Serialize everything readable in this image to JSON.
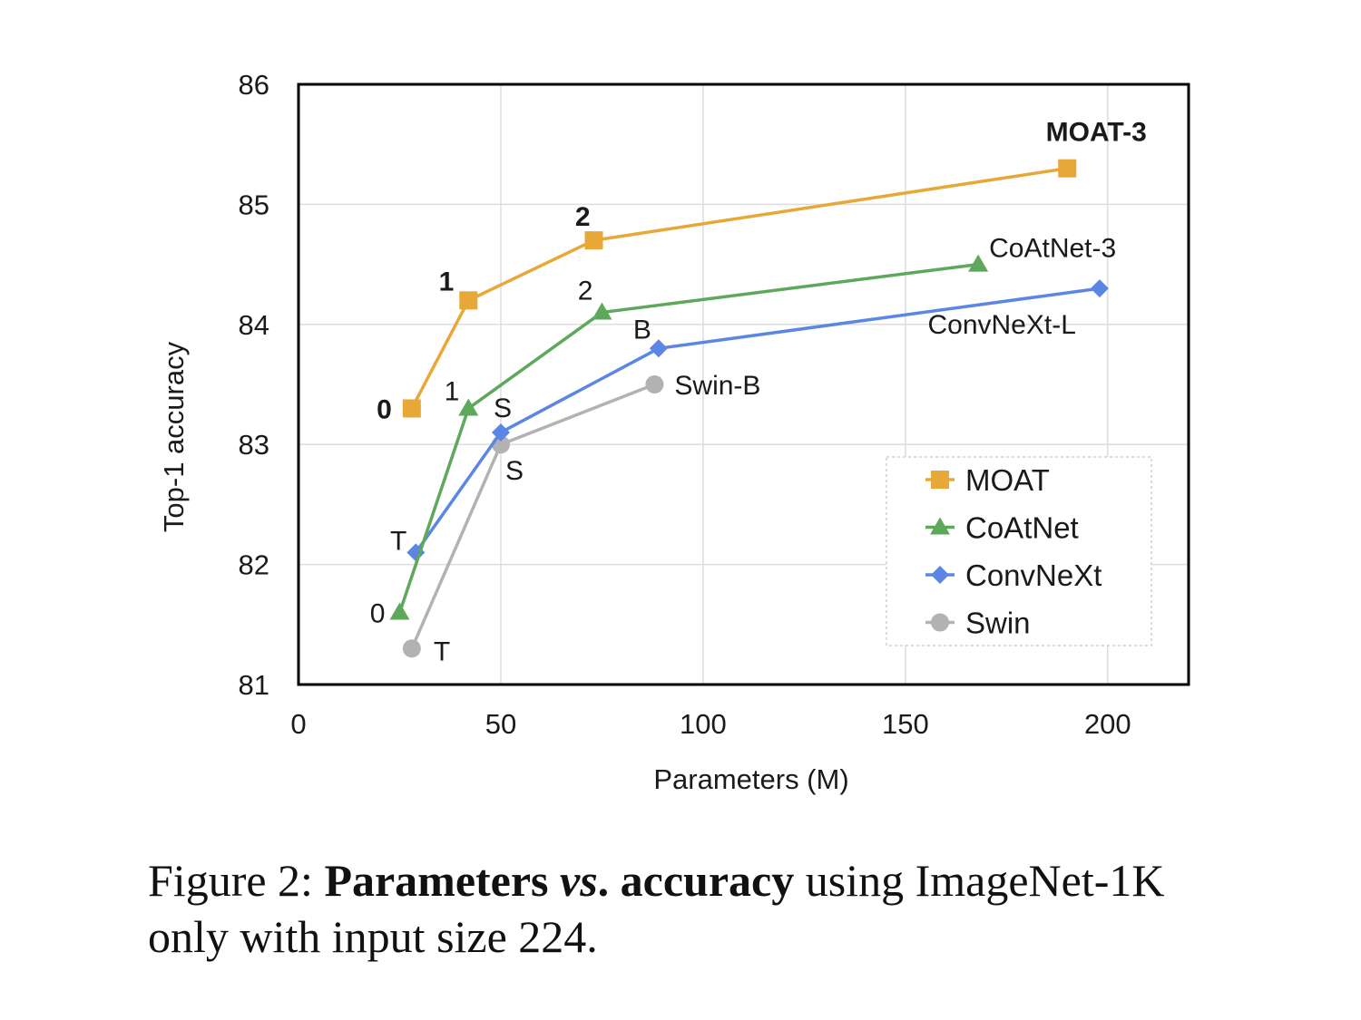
{
  "chart_data": {
    "type": "line",
    "title": "",
    "xlabel": "Parameters (M)",
    "ylabel": "Top-1 accuracy",
    "xlim": [
      0,
      220
    ],
    "ylim": [
      81,
      86
    ],
    "xticks": [
      0,
      50,
      100,
      150,
      200
    ],
    "yticks": [
      81,
      82,
      83,
      84,
      85,
      86
    ],
    "grid": true,
    "legend_position": "bottom-right",
    "series": [
      {
        "name": "MOAT",
        "marker": "square",
        "color": "#E8A838",
        "points": [
          {
            "x": 28,
            "y": 83.3,
            "label": "0",
            "bold": true
          },
          {
            "x": 42,
            "y": 84.2,
            "label": "1",
            "bold": true
          },
          {
            "x": 73,
            "y": 84.7,
            "label": "2",
            "bold": true
          },
          {
            "x": 190,
            "y": 85.3,
            "label": "MOAT-3",
            "bold": true
          }
        ]
      },
      {
        "name": "CoAtNet",
        "marker": "triangle",
        "color": "#5DA85A",
        "points": [
          {
            "x": 25,
            "y": 81.6,
            "label": "0"
          },
          {
            "x": 42,
            "y": 83.3,
            "label": "1"
          },
          {
            "x": 75,
            "y": 84.1,
            "label": "2"
          },
          {
            "x": 168,
            "y": 84.5,
            "label": "CoAtNet-3"
          }
        ]
      },
      {
        "name": "ConvNeXt",
        "marker": "diamond",
        "color": "#5B86E5",
        "points": [
          {
            "x": 29,
            "y": 82.1,
            "label": "T"
          },
          {
            "x": 50,
            "y": 83.1,
            "label": "S"
          },
          {
            "x": 89,
            "y": 83.8,
            "label": "B"
          },
          {
            "x": 198,
            "y": 84.3,
            "label": "ConvNeXt-L"
          }
        ]
      },
      {
        "name": "Swin",
        "marker": "circle",
        "color": "#B2B2B2",
        "points": [
          {
            "x": 28,
            "y": 81.3,
            "label": "T"
          },
          {
            "x": 50,
            "y": 83.0,
            "label": "S"
          },
          {
            "x": 88,
            "y": 83.5,
            "label": "Swin-B"
          }
        ]
      }
    ]
  },
  "caption": {
    "prefix": "Figure 2: ",
    "bold_part1": "Parameters ",
    "italic_part": "vs",
    "bold_part2": ". accuracy",
    "rest": " using ImageNet-1K only with input size 224."
  }
}
